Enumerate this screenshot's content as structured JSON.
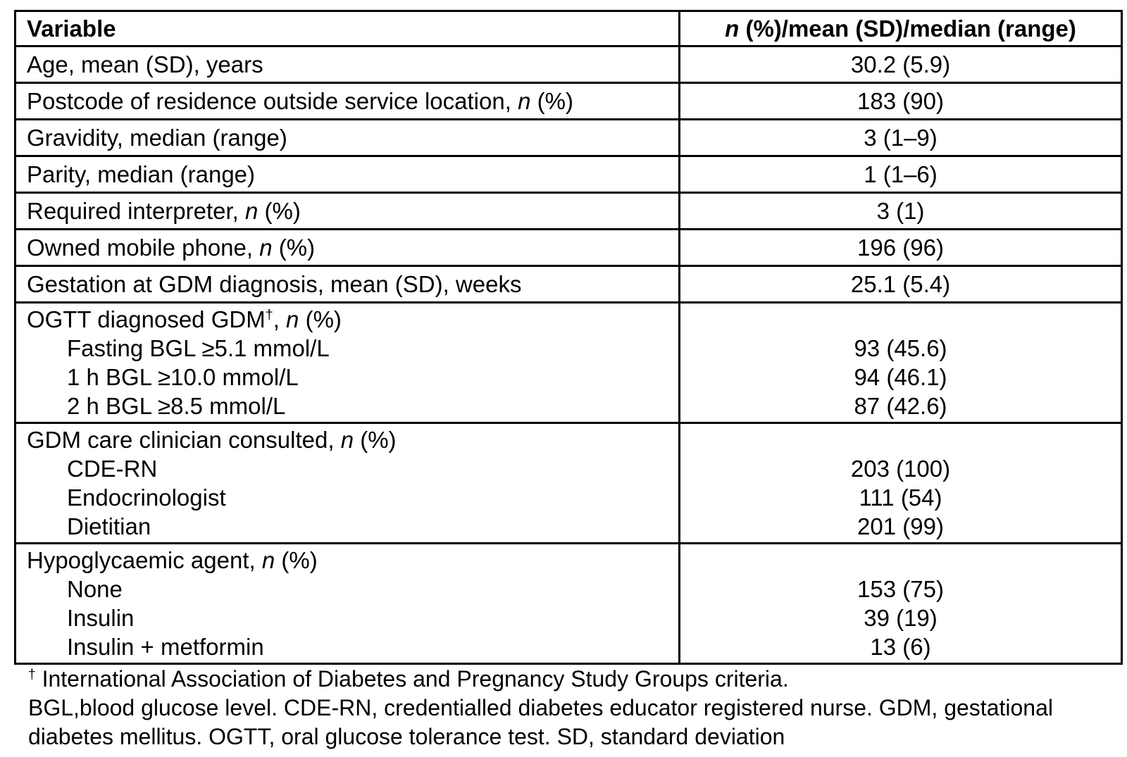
{
  "page": {
    "background": "#ffffff",
    "text_color": "#000000",
    "border_color": "#000000"
  },
  "table": {
    "header": {
      "variable": "Variable",
      "value_n": "n",
      "value_rest": " (%)/mean (SD)/median (range)"
    },
    "rows": [
      {
        "pre": "Age, mean (SD), years",
        "mid": "",
        "n": "",
        "post": "",
        "value": "30.2 (5.9)"
      },
      {
        "pre": "Postcode of residence outside service location",
        "mid": ", ",
        "n": "n",
        "post": " (%)",
        "value": "183 (90)"
      },
      {
        "pre": "Gravidity, median (range)",
        "mid": "",
        "n": "",
        "post": "",
        "value": "3 (1–9)"
      },
      {
        "pre": "Parity, median (range)",
        "mid": "",
        "n": "",
        "post": "",
        "value": "1 (1–6)"
      },
      {
        "pre": "Required interpreter",
        "mid": ", ",
        "n": "n",
        "post": " (%)",
        "value": "3 (1)"
      },
      {
        "pre": "Owned mobile phone",
        "mid": ", ",
        "n": "n",
        "post": " (%)",
        "value": "196 (96)"
      },
      {
        "pre": "Gestation at GDM diagnosis, mean (SD), weeks",
        "mid": "",
        "n": "",
        "post": "",
        "value": "25.1 (5.4)"
      }
    ],
    "groups": [
      {
        "pre": "OGTT diagnosed GDM",
        "sup": "†",
        "mid": ", ",
        "n": "n",
        "post": " (%)",
        "items": [
          {
            "label": "Fasting BGL ≥5.1 mmol/L",
            "value": "93 (45.6)"
          },
          {
            "label": "1 h BGL ≥10.0 mmol/L",
            "value": "94 (46.1)"
          },
          {
            "label": "2 h BGL ≥8.5 mmol/L",
            "value": "87 (42.6)"
          }
        ]
      },
      {
        "pre": "GDM care clinician consulted",
        "sup": "",
        "mid": ", ",
        "n": "n",
        "post": " (%)",
        "items": [
          {
            "label": "CDE-RN",
            "value": "203 (100)"
          },
          {
            "label": "Endocrinologist",
            "value": "111 (54)"
          },
          {
            "label": "Dietitian",
            "value": "201 (99)"
          }
        ]
      },
      {
        "pre": "Hypoglycaemic agent",
        "sup": "",
        "mid": ", ",
        "n": "n",
        "post": " (%)",
        "items": [
          {
            "label": "None",
            "value": "153 (75)"
          },
          {
            "label": "Insulin",
            "value": "39 (19)"
          },
          {
            "label": "Insulin + metformin",
            "value": "13 (6)"
          }
        ]
      }
    ]
  },
  "footnotes": {
    "dagger": "†",
    "line1": " International Association of Diabetes and Pregnancy Study Groups criteria.",
    "line2": "BGL,blood glucose level. CDE-RN, credentialled diabetes educator registered nurse. GDM, gestational",
    "line3": "diabetes mellitus. OGTT, oral glucose tolerance test. SD, standard deviation"
  }
}
